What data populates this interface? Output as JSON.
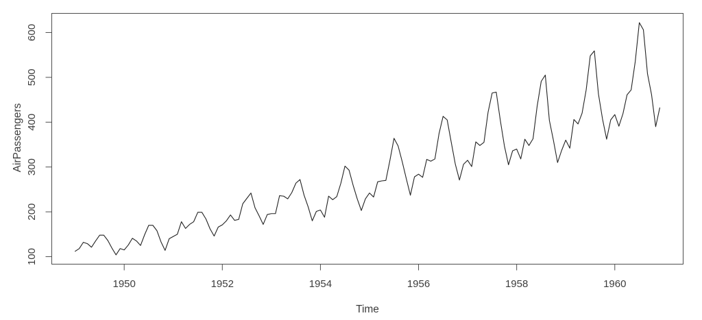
{
  "chart_data": {
    "type": "line",
    "title": "",
    "xlabel": "Time",
    "ylabel": "AirPassengers",
    "x_ticks": [
      1950,
      1952,
      1954,
      1956,
      1958,
      1960
    ],
    "y_ticks": [
      100,
      200,
      300,
      400,
      500,
      600
    ],
    "x_start": 1949,
    "points_per_year": 12,
    "xlim": [
      1949,
      1960.9167
    ],
    "ylim": [
      104,
      622
    ],
    "grid": "off",
    "legend": "none",
    "series": [
      {
        "name": "AirPassengers",
        "values": [
          112,
          118,
          132,
          129,
          121,
          135,
          148,
          148,
          136,
          119,
          104,
          118,
          115,
          126,
          141,
          135,
          125,
          149,
          170,
          170,
          158,
          133,
          114,
          140,
          145,
          150,
          178,
          163,
          172,
          178,
          199,
          199,
          184,
          162,
          146,
          166,
          171,
          180,
          193,
          181,
          183,
          218,
          230,
          242,
          209,
          191,
          172,
          194,
          196,
          196,
          236,
          235,
          229,
          243,
          264,
          272,
          237,
          211,
          180,
          201,
          204,
          188,
          235,
          227,
          234,
          264,
          302,
          293,
          259,
          229,
          203,
          229,
          242,
          233,
          267,
          269,
          270,
          315,
          364,
          347,
          312,
          274,
          237,
          278,
          284,
          277,
          317,
          313,
          318,
          374,
          413,
          405,
          355,
          306,
          271,
          306,
          315,
          301,
          356,
          348,
          355,
          422,
          465,
          467,
          404,
          347,
          305,
          336,
          340,
          318,
          362,
          348,
          363,
          435,
          491,
          505,
          404,
          359,
          310,
          337,
          360,
          342,
          406,
          396,
          420,
          472,
          548,
          559,
          463,
          407,
          362,
          405,
          417,
          391,
          419,
          461,
          472,
          535,
          622,
          606,
          508,
          461,
          390,
          432
        ]
      }
    ],
    "colors": {
      "line": "#222222",
      "frame": "#4d4d4d",
      "text": "#3c3c3c",
      "background": "#ffffff"
    }
  }
}
